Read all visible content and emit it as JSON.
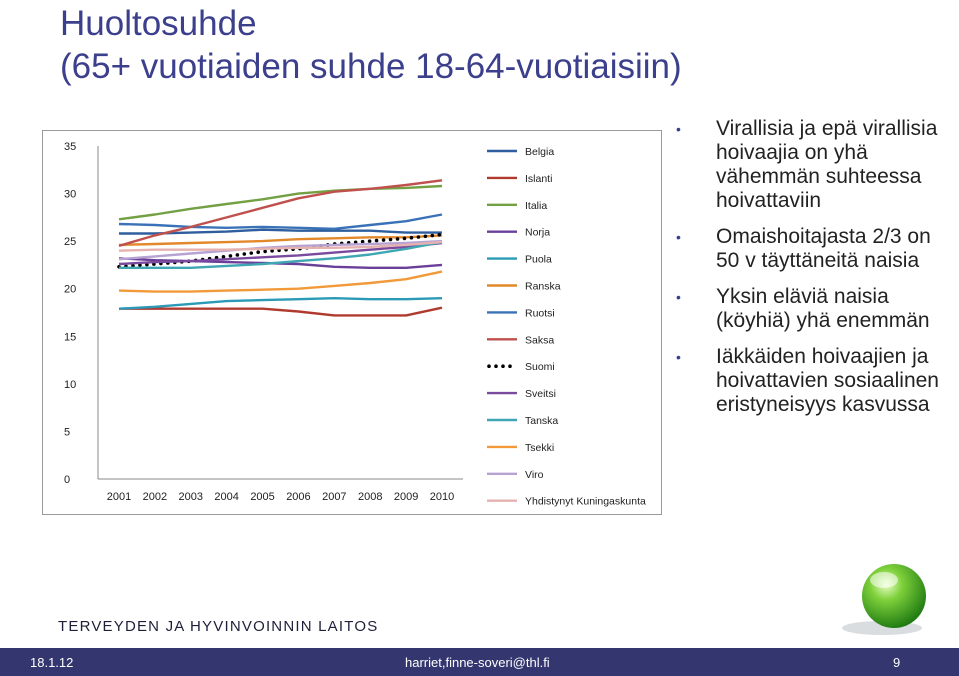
{
  "slide": {
    "title_line1": "Huoltosuhde",
    "title_line2": "(65+ vuotiaiden suhde 18-64-vuotiaisiin)",
    "bullets": [
      "Virallisia ja epä virallisia hoivaajia on yhä vähemmän suhteessa hoivattaviin",
      "Omaishoitajasta 2/3 on 50 v täyttäneitä naisia",
      "Yksin eläviä naisia (köyhiä) yhä enemmän",
      "Iäkkäiden hoivaajien ja hoivattavien sosiaalinen eristyneisyys kasvussa"
    ],
    "organization": "TERVEYDEN JA HYVINVOINNIN LAITOS",
    "footer": {
      "date": "18.1.12",
      "email": "harriet,finne-soveri@thl.fi",
      "page": "9"
    },
    "accent_color": "#3b3f8c",
    "footer_color": "#34366f"
  },
  "chart_data": {
    "type": "line",
    "title": "",
    "xlabel": "",
    "ylabel": "",
    "x": [
      "2001",
      "2002",
      "2003",
      "2004",
      "2005",
      "2006",
      "2007",
      "2008",
      "2009",
      "2010"
    ],
    "ylim": [
      0,
      35
    ],
    "yticks": [
      0,
      5,
      10,
      15,
      20,
      25,
      30,
      35
    ],
    "legend_position": "right",
    "series": [
      {
        "name": "Belgia",
        "color": "#2e5e9e",
        "dash": "solid",
        "values": [
          25.8,
          25.8,
          25.9,
          26.0,
          26.2,
          26.1,
          26.1,
          26.1,
          25.9,
          25.9
        ]
      },
      {
        "name": "Islanti",
        "color": "#b03a2e",
        "dash": "solid",
        "values": [
          17.9,
          17.9,
          17.9,
          17.9,
          17.9,
          17.6,
          17.2,
          17.2,
          17.2,
          18.0
        ]
      },
      {
        "name": "Italia",
        "color": "#72a043",
        "dash": "solid",
        "values": [
          27.3,
          27.8,
          28.4,
          28.9,
          29.4,
          30.0,
          30.3,
          30.5,
          30.6,
          30.8
        ]
      },
      {
        "name": "Norja",
        "color": "#6a3f99",
        "dash": "solid",
        "values": [
          23.2,
          23.0,
          22.9,
          22.8,
          22.7,
          22.6,
          22.3,
          22.2,
          22.2,
          22.5
        ]
      },
      {
        "name": "Puola",
        "color": "#2a9ab7",
        "dash": "solid",
        "values": [
          17.9,
          18.1,
          18.4,
          18.7,
          18.8,
          18.9,
          19.0,
          18.9,
          18.9,
          19.0
        ]
      },
      {
        "name": "Ranska",
        "color": "#e2882a",
        "dash": "solid",
        "values": [
          24.6,
          24.7,
          24.8,
          24.9,
          25.0,
          25.2,
          25.3,
          25.4,
          25.4,
          25.6
        ]
      },
      {
        "name": "Ruotsi",
        "color": "#3a72b8",
        "dash": "solid",
        "values": [
          26.8,
          26.7,
          26.5,
          26.4,
          26.5,
          26.4,
          26.3,
          26.7,
          27.1,
          27.8
        ]
      },
      {
        "name": "Saksa",
        "color": "#c0504d",
        "dash": "solid",
        "values": [
          24.5,
          25.6,
          26.5,
          27.5,
          28.5,
          29.5,
          30.2,
          30.5,
          30.9,
          31.4
        ]
      },
      {
        "name": "Suomi",
        "color": "#000000",
        "dash": "dotted",
        "values": [
          22.3,
          22.6,
          22.9,
          23.4,
          23.9,
          24.2,
          24.7,
          25.0,
          25.3,
          25.7
        ]
      },
      {
        "name": "Sveitsi",
        "color": "#7a4a9e",
        "dash": "solid",
        "values": [
          22.6,
          22.8,
          22.9,
          23.1,
          23.3,
          23.5,
          23.8,
          24.1,
          24.4,
          24.8
        ]
      },
      {
        "name": "Tanska",
        "color": "#3fa6b3",
        "dash": "solid",
        "values": [
          22.2,
          22.2,
          22.2,
          22.4,
          22.6,
          22.9,
          23.2,
          23.6,
          24.2,
          24.9
        ]
      },
      {
        "name": "Tsekki",
        "color": "#f29a3a",
        "dash": "solid",
        "values": [
          19.8,
          19.7,
          19.7,
          19.8,
          19.9,
          20.0,
          20.3,
          20.6,
          21.0,
          21.8
        ]
      },
      {
        "name": "Viro",
        "color": "#b7a3d3",
        "dash": "solid",
        "values": [
          23.1,
          23.4,
          23.7,
          24.0,
          24.3,
          24.5,
          24.6,
          24.7,
          24.8,
          25.0
        ]
      },
      {
        "name": "Yhdistynyt Kuningaskunta",
        "color": "#e6b2b0",
        "dash": "solid",
        "values": [
          24.0,
          24.1,
          24.1,
          24.1,
          24.2,
          24.3,
          24.3,
          24.4,
          24.6,
          24.9
        ]
      }
    ]
  }
}
